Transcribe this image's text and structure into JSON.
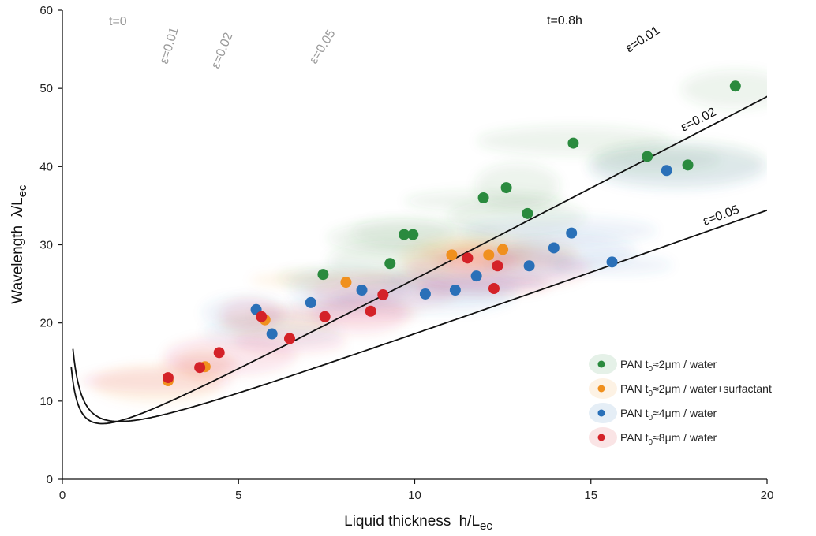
{
  "chart_data": {
    "type": "scatter",
    "xlabel": {
      "main": "Liquid thickness",
      "var": "h/L",
      "sub": "ec"
    },
    "ylabel": {
      "main": "Wavelength",
      "var": "λ/L",
      "sub": "ec"
    },
    "xlim": [
      0,
      20
    ],
    "ylim": [
      0,
      60
    ],
    "x_ticks": [
      "0",
      "5",
      "10",
      "15",
      "20"
    ],
    "y_ticks": [
      "0",
      "10",
      "20",
      "30",
      "40",
      "50",
      "60"
    ],
    "curve_labels": {
      "t0": "t=0",
      "t0_eps001": "ε=0.01",
      "t0_eps002": "ε=0.02",
      "t0_eps005": "ε=0.05",
      "t08": "t=0.8h",
      "t08_eps001": "ε=0.01",
      "t08_eps002": "ε=0.02",
      "t08_eps005": "ε=0.05"
    },
    "colors": {
      "green": "#2a8a3e",
      "orange": "#f0901e",
      "blue": "#2a70b8",
      "red": "#d42228",
      "solid_curve": "#111111",
      "dashed_curve": "#8a8a8a"
    },
    "series": [
      {
        "name": "PAN t₀≈2μm / water",
        "legend": {
          "pre": "PAN t",
          "sub": "0",
          "post": "≈2μm / water"
        },
        "color": "#2a8a3e",
        "points": [
          [
            7.4,
            26.2
          ],
          [
            9.3,
            27.6
          ],
          [
            9.7,
            31.3
          ],
          [
            9.95,
            31.3
          ],
          [
            11.95,
            36
          ],
          [
            12.6,
            37.3
          ],
          [
            13.2,
            34
          ],
          [
            14.5,
            43
          ],
          [
            16.6,
            41.3
          ],
          [
            17.75,
            40.2
          ],
          [
            19.1,
            50.3
          ]
        ]
      },
      {
        "name": "PAN t₀≈2μm / water+surfactant",
        "legend": {
          "pre": "PAN t",
          "sub": "0",
          "post": "≈2μm / water+surfactant"
        },
        "color": "#f0901e",
        "points": [
          [
            3.0,
            12.6
          ],
          [
            4.05,
            14.4
          ],
          [
            5.75,
            20.4
          ],
          [
            8.05,
            25.2
          ],
          [
            11.05,
            28.7
          ],
          [
            12.1,
            28.7
          ],
          [
            12.5,
            29.4
          ]
        ]
      },
      {
        "name": "PAN t₀≈4μm / water",
        "legend": {
          "pre": "PAN t",
          "sub": "0",
          "post": "≈4μm / water"
        },
        "color": "#2a70b8",
        "points": [
          [
            5.5,
            21.7
          ],
          [
            5.95,
            18.6
          ],
          [
            7.05,
            22.6
          ],
          [
            8.5,
            24.2
          ],
          [
            10.3,
            23.7
          ],
          [
            11.15,
            24.2
          ],
          [
            11.75,
            26
          ],
          [
            13.25,
            27.3
          ],
          [
            13.95,
            29.6
          ],
          [
            14.45,
            31.5
          ],
          [
            15.6,
            27.8
          ],
          [
            17.15,
            39.5
          ]
        ]
      },
      {
        "name": "PAN t₀≈8μm / water",
        "legend": {
          "pre": "PAN t",
          "sub": "0",
          "post": "≈8μm / water"
        },
        "color": "#d42228",
        "points": [
          [
            3.0,
            13.0
          ],
          [
            3.9,
            14.3
          ],
          [
            4.45,
            16.2
          ],
          [
            5.65,
            20.8
          ],
          [
            6.45,
            18.0
          ],
          [
            7.45,
            20.8
          ],
          [
            8.75,
            21.5
          ],
          [
            9.1,
            23.6
          ],
          [
            11.5,
            28.3
          ],
          [
            12.25,
            24.4
          ],
          [
            12.35,
            27.3
          ]
        ]
      }
    ],
    "legend_position": "bottom-right",
    "grid": false
  }
}
